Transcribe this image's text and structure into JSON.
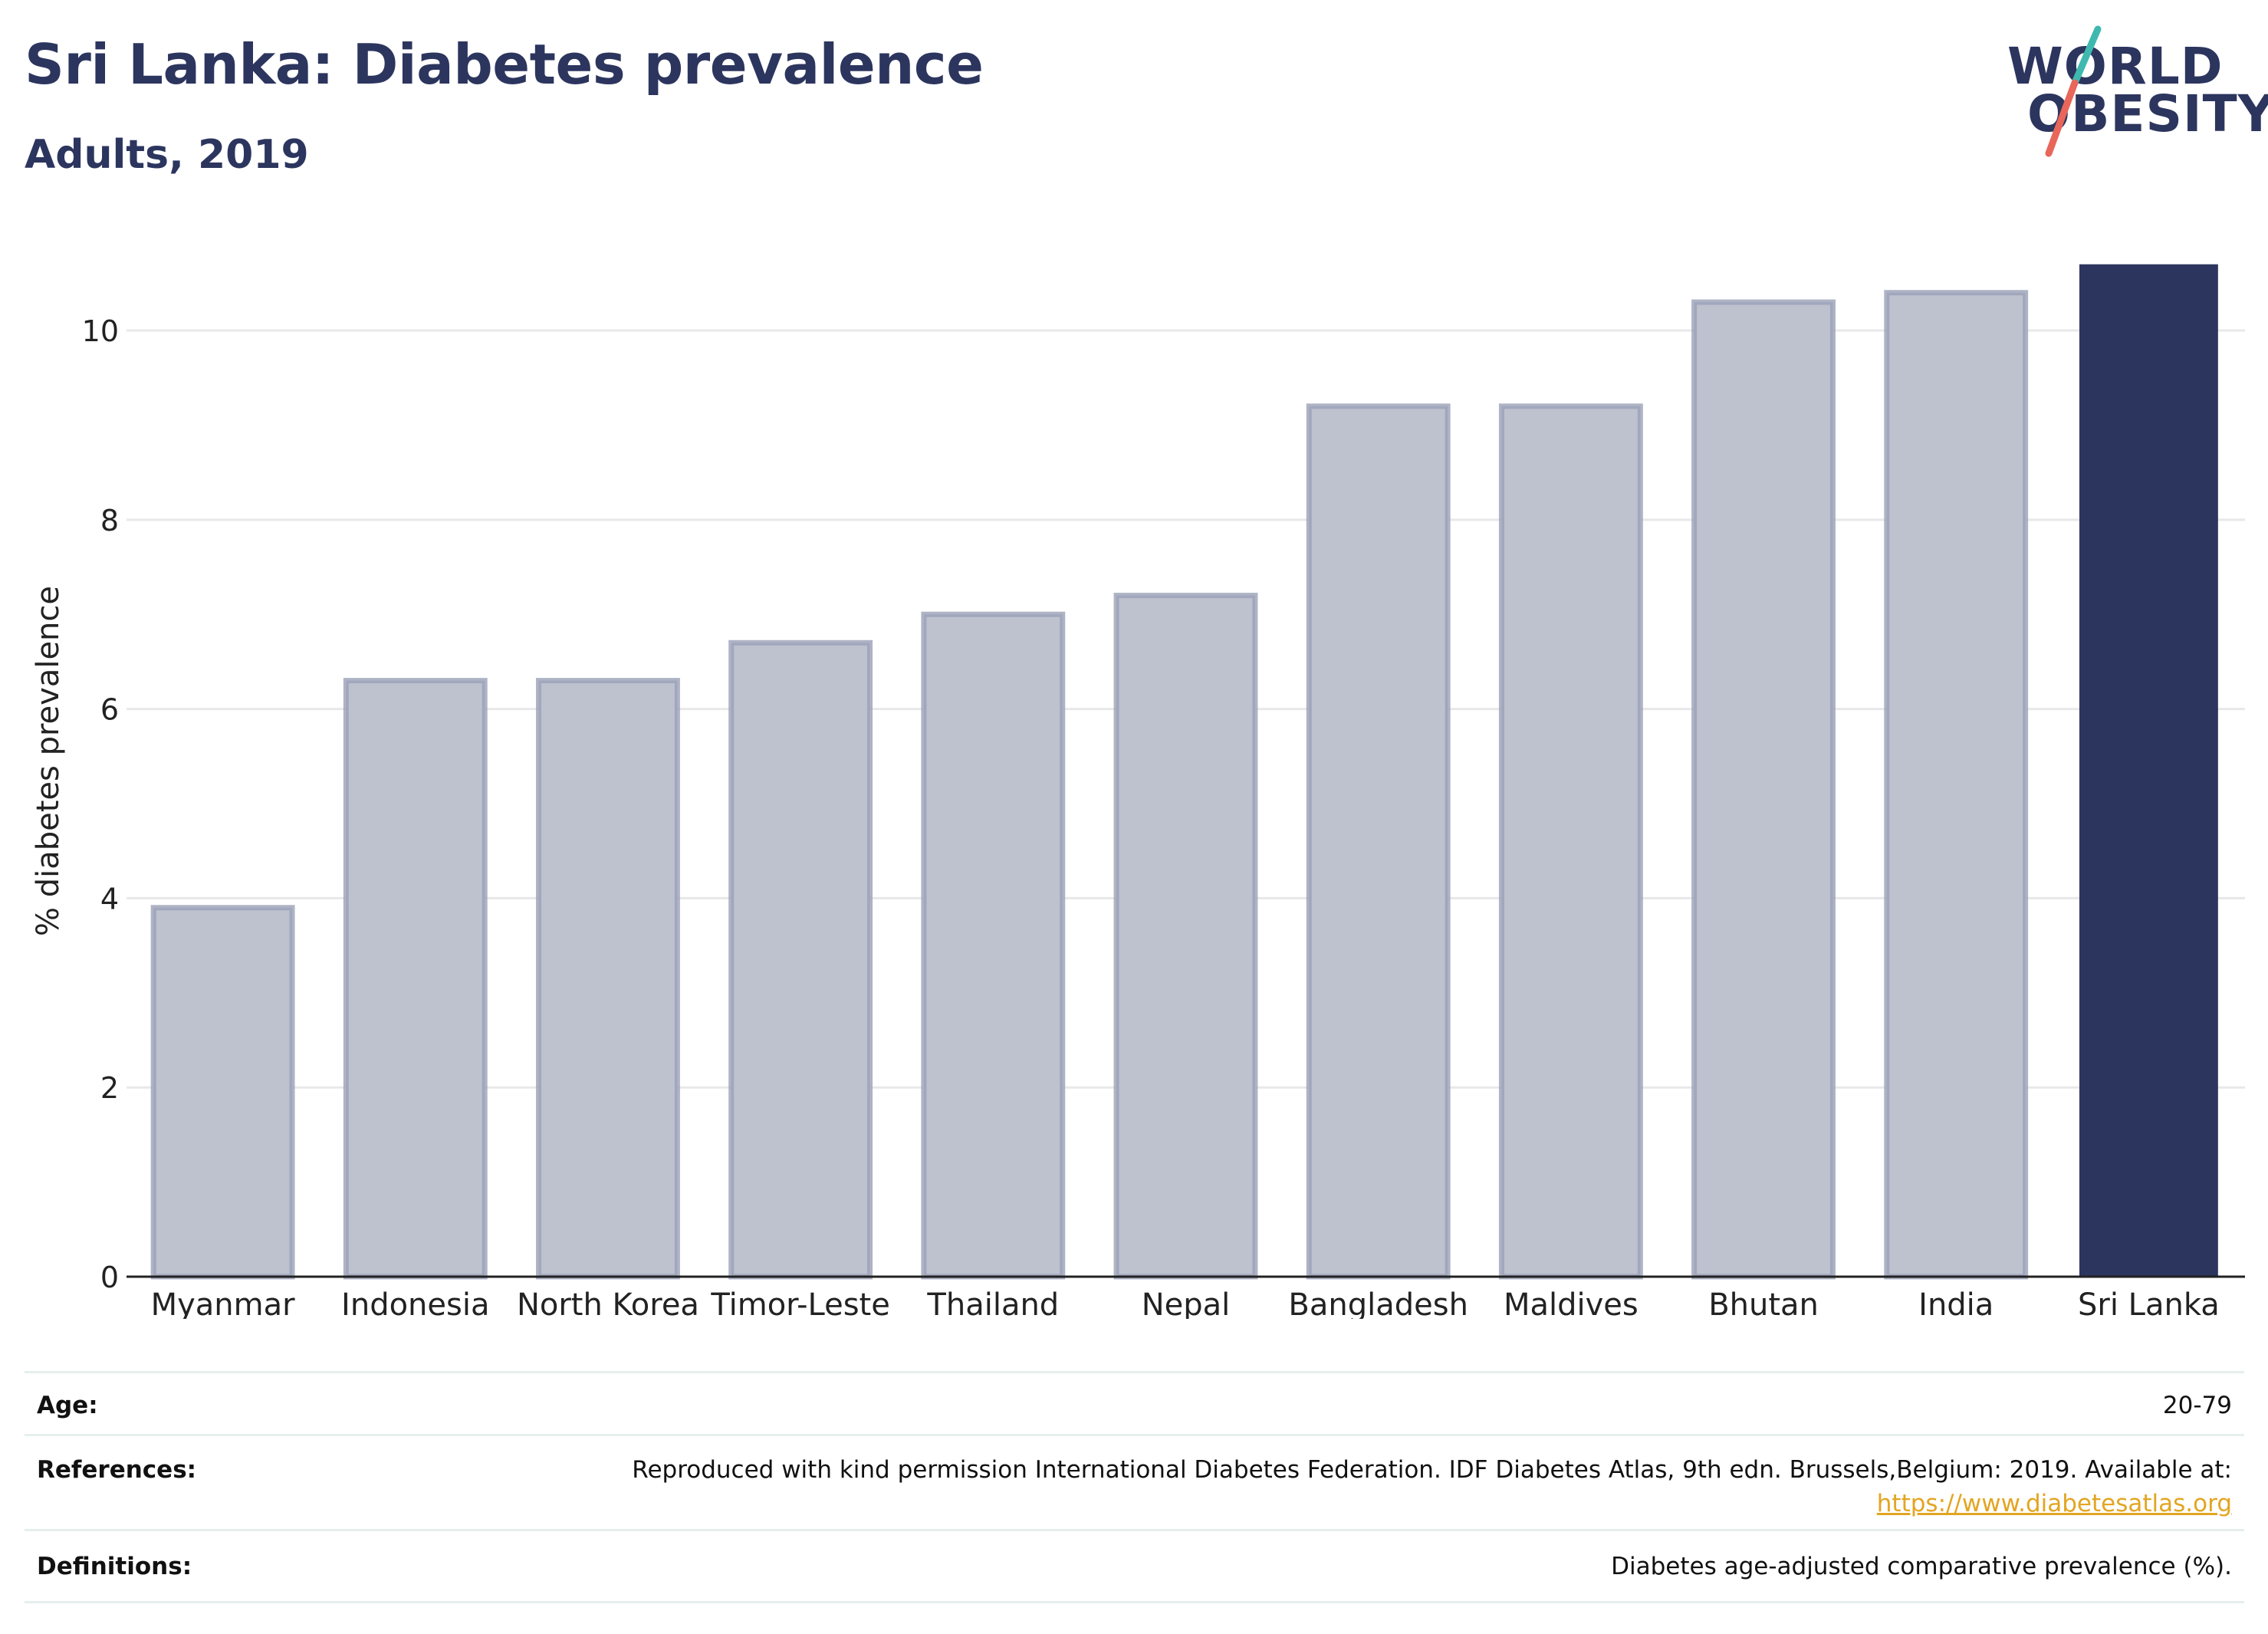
{
  "header": {
    "title": "Sri Lanka: Diabetes prevalence",
    "subtitle": "Adults, 2019"
  },
  "logo": {
    "line1": "WORLD",
    "line2": "OBESITY",
    "slash_colors": [
      "#3fb9b0",
      "#e8665a"
    ]
  },
  "colors": {
    "highlight": "#2c355e",
    "bar_fill": "#bec2cf",
    "bar_outline": "#9aa0b6",
    "gridline": "#e8e8e8",
    "axis": "#222222"
  },
  "chart_data": {
    "type": "bar",
    "categories": [
      "Myanmar",
      "Indonesia",
      "North Korea",
      "Timor-Leste",
      "Thailand",
      "Nepal",
      "Bangladesh",
      "Maldives",
      "Bhutan",
      "India",
      "Sri Lanka"
    ],
    "values": [
      3.9,
      6.3,
      6.3,
      6.7,
      7.0,
      7.2,
      9.2,
      9.2,
      10.3,
      10.4,
      10.7
    ],
    "highlight": "Sri Lanka",
    "ylabel": "% diabetes prevalence",
    "ylim": [
      0,
      10.9
    ],
    "yticks": [
      0,
      2,
      4,
      6,
      8,
      10
    ],
    "grid": true
  },
  "meta": {
    "age_label": "Age:",
    "age_value": "20-79",
    "references_label": "References:",
    "references_text": "Reproduced with kind permission International Diabetes Federation. IDF Diabetes Atlas, 9th edn. Brussels,Belgium: 2019. Available at:",
    "references_link": "https://www.diabetesatlas.org",
    "definitions_label": "Definitions:",
    "definitions_value": "Diabetes age-adjusted comparative prevalence (%)."
  }
}
